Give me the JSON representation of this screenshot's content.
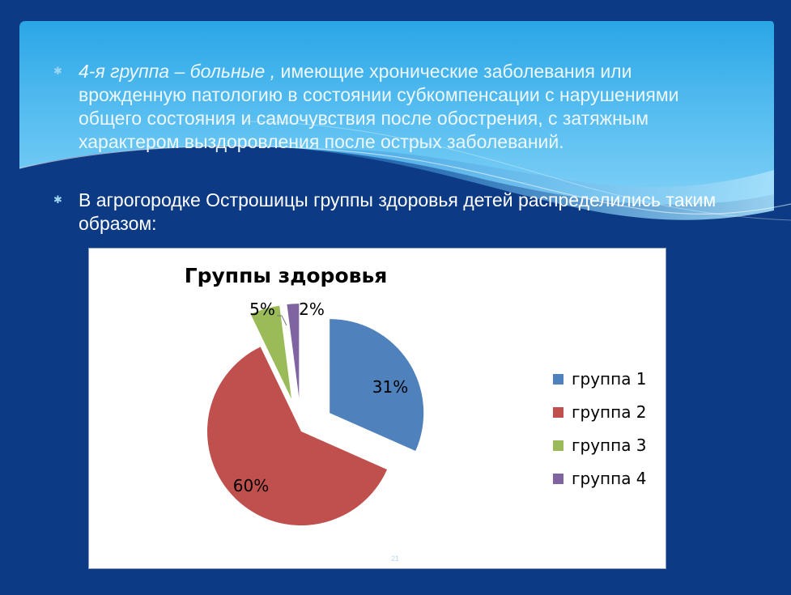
{
  "slide": {
    "bullet1": {
      "lead": "4-я группа – больные ,",
      "text": " имеющие хронические заболевания или врожденную патологию в состоянии субкомпенсации с нарушениями общего состояния и самочувствия после обострения, с затяжным характером выздоровления после острых заболеваний."
    },
    "bullet2": "В агрогородке Острошицы группы здоровья детей распределились таким образом:",
    "page_number": "21"
  },
  "colors": {
    "background": "#0c3a85",
    "group1": "#4f81bd",
    "group2": "#c0504d",
    "group3": "#9bbb59",
    "group4": "#8064a2"
  },
  "chart_data": {
    "type": "pie",
    "title": "Группы здоровья",
    "categories": [
      "группа 1",
      "группа 2",
      "группа 3",
      "группа 4"
    ],
    "values": [
      31,
      60,
      5,
      2
    ],
    "data_labels": [
      "31%",
      "60%",
      "5%",
      "2%"
    ],
    "exploded": true,
    "legend": "right"
  }
}
